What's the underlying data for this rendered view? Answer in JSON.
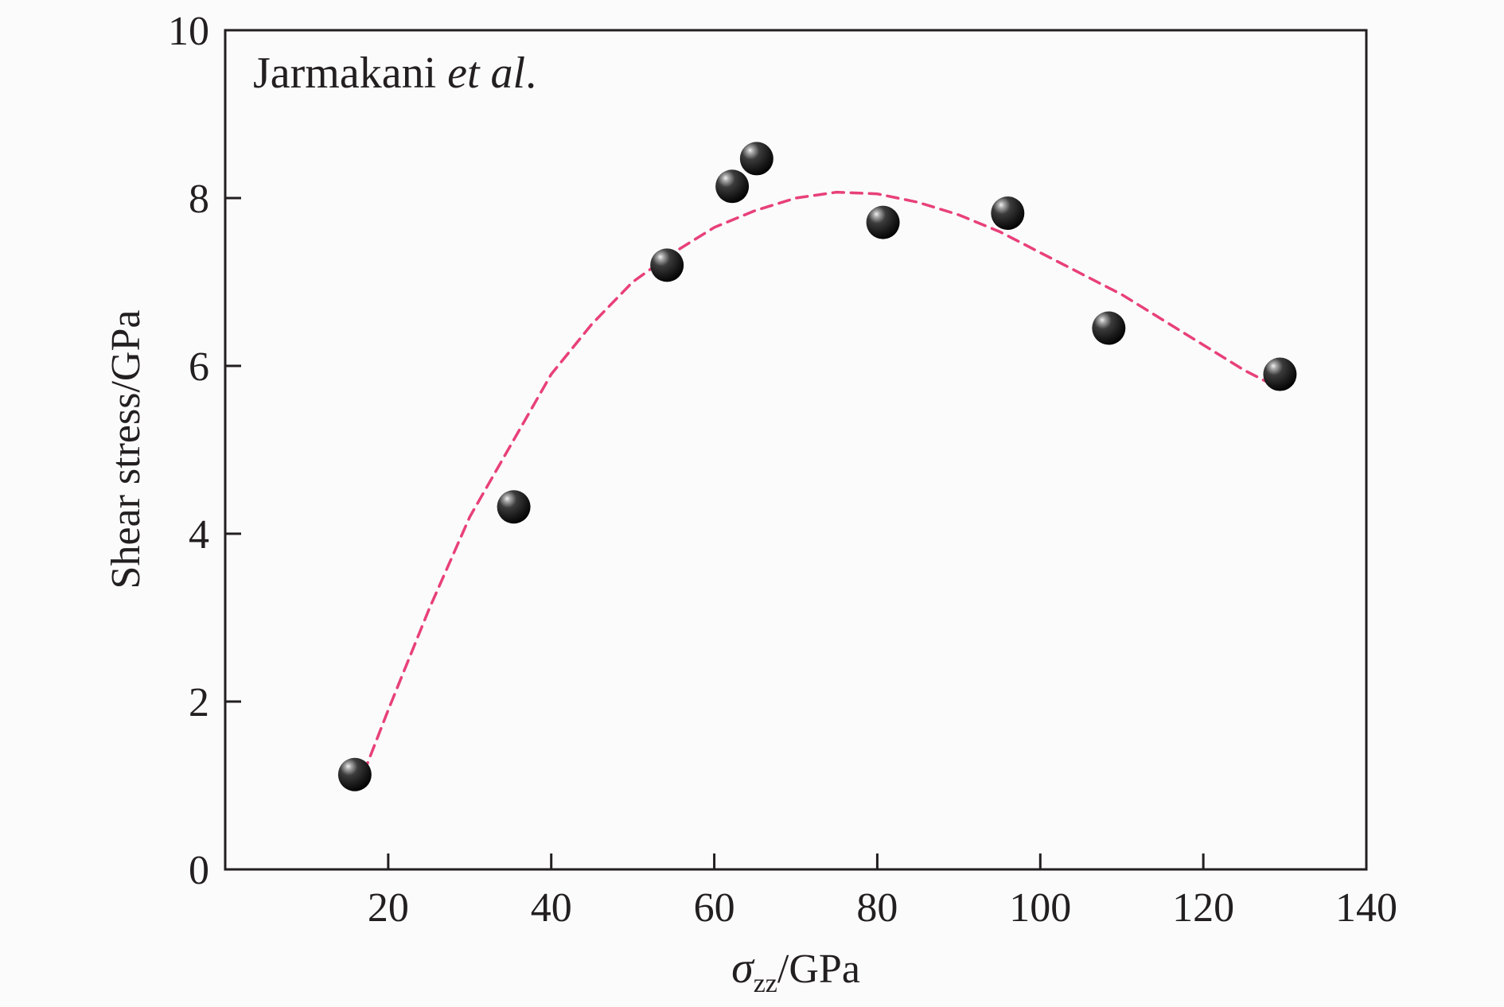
{
  "chart_data": {
    "type": "scatter",
    "annotation": {
      "prefix": "Jarmakani ",
      "italic": "et al",
      "suffix": "."
    },
    "xlabel": {
      "symbol": "σ",
      "subscript": "zz",
      "unit": "/GPa"
    },
    "ylabel": "Shear stress/GPa",
    "xlim": [
      0,
      140
    ],
    "ylim": [
      0,
      10
    ],
    "x_ticks": [
      20,
      40,
      60,
      80,
      100,
      120,
      140
    ],
    "y_ticks": [
      0,
      2,
      4,
      6,
      8,
      10
    ],
    "grid": false,
    "legend": "none",
    "series": [
      {
        "type": "scatter",
        "marker": "sphere",
        "x": [
          15.9,
          35.4,
          54.2,
          62.2,
          65.2,
          80.7,
          96.0,
          108.4,
          129.4
        ],
        "y": [
          1.13,
          4.32,
          7.2,
          8.14,
          8.47,
          7.71,
          7.82,
          6.45,
          5.9
        ]
      },
      {
        "type": "line",
        "style": "dashed",
        "color": "#e8407a",
        "x": [
          17,
          20,
          25,
          30,
          35,
          40,
          45,
          50,
          55,
          60,
          65,
          70,
          75,
          80,
          85,
          90,
          95,
          100,
          105,
          110,
          115,
          120,
          125,
          128
        ],
        "y": [
          1.15,
          1.9,
          3.1,
          4.2,
          5.05,
          5.9,
          6.5,
          7.0,
          7.35,
          7.65,
          7.85,
          8.0,
          8.07,
          8.05,
          7.95,
          7.8,
          7.6,
          7.35,
          7.1,
          6.85,
          6.55,
          6.25,
          5.95,
          5.8
        ]
      }
    ]
  },
  "colors": {
    "axis": "#231f20",
    "fit_line": "#e8407a",
    "marker_dark": "#1a1a1a",
    "marker_highlight": "#d9d9d9",
    "background": "#fbfbfb"
  }
}
